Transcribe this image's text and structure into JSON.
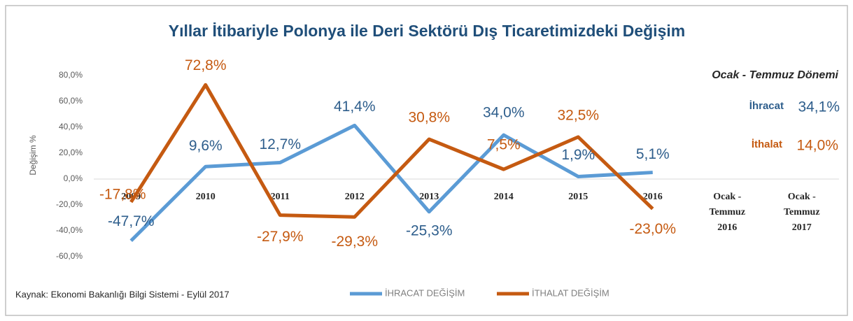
{
  "chart_data": {
    "type": "line",
    "title": "Yıllar İtibariyle Polonya ile Deri Sektörü Dış Ticaretimizdeki Değişim",
    "y_label": "Değişim %",
    "categories": [
      "2009",
      "2010",
      "2011",
      "2012",
      "2013",
      "2014",
      "2015",
      "2016",
      "Ocak - Temmuz 2016",
      "Ocak - Temmuz 2017"
    ],
    "series": [
      {
        "name": "İHRACAT DEĞİŞİM",
        "color": "#5b9bd5",
        "label_color": "#2e5e8c",
        "values": [
          -47.7,
          9.6,
          12.7,
          41.4,
          -25.3,
          34.0,
          1.9,
          5.1,
          null,
          null
        ],
        "value_labels": [
          "-47,7%",
          "9,6%",
          "12,7%",
          "41,4%",
          "-25,3%",
          "34,0%",
          "1,9%",
          "5,1%",
          null,
          null
        ]
      },
      {
        "name": "İTHALAT DEĞİŞİM",
        "color": "#c55a11",
        "label_color": "#c55a11",
        "values": [
          -17.8,
          72.8,
          -27.9,
          -29.3,
          30.8,
          7.5,
          32.5,
          -23.0,
          null,
          null
        ],
        "value_labels": [
          "-17,8%",
          "72,8%",
          "-27,9%",
          "-29,3%",
          "30,8%",
          "7,5%",
          "32,5%",
          "-23,0%",
          null,
          null
        ]
      }
    ],
    "ylim": [
      -60,
      80
    ],
    "yticks": [
      {
        "value": -60,
        "label": "-60,0%"
      },
      {
        "value": -40,
        "label": "-40,0%"
      },
      {
        "value": -20,
        "label": "-20,0%"
      },
      {
        "value": 0,
        "label": "0,0%"
      },
      {
        "value": 20,
        "label": "20,0%"
      },
      {
        "value": 40,
        "label": "40,0%"
      },
      {
        "value": 60,
        "label": "60,0%"
      },
      {
        "value": 80,
        "label": "80,0%"
      }
    ],
    "annotations": {
      "period": "Ocak - Temmuz Dönemi",
      "export_label": "İhracat",
      "export_value": "34,1%",
      "import_label": "İthalat",
      "import_value": "14,0%"
    },
    "source": "Kaynak: Ekonomi Bakanlığı Bilgi Sistemi - Eylül 2017"
  }
}
